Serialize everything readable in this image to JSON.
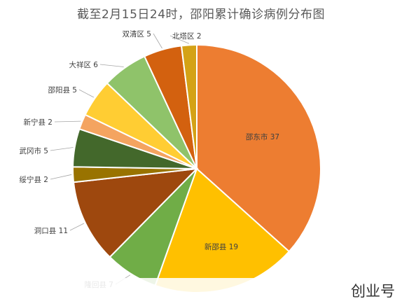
{
  "chart_data": {
    "type": "pie",
    "title": "截至2月15日24时，邵阳累计确诊病例分布图",
    "slices": [
      {
        "label": "邵东市",
        "value": 37,
        "color": "#ED7D31"
      },
      {
        "label": "新邵县",
        "value": 19,
        "color": "#FFC000"
      },
      {
        "label": "隆回县",
        "value": 7,
        "color": "#70AD47"
      },
      {
        "label": "洞口县",
        "value": 11,
        "color": "#9E480E"
      },
      {
        "label": "绥宁县",
        "value": 2,
        "color": "#997300"
      },
      {
        "label": "武冈市",
        "value": 5,
        "color": "#43682B"
      },
      {
        "label": "新宁县",
        "value": 2,
        "color": "#F4A460"
      },
      {
        "label": "邵阳县",
        "value": 5,
        "color": "#FFCD33"
      },
      {
        "label": "大祥区",
        "value": 6,
        "color": "#8FC36A"
      },
      {
        "label": "双清区",
        "value": 5,
        "color": "#D3610F"
      },
      {
        "label": "北塔区",
        "value": 2,
        "color": "#D4A216"
      }
    ],
    "legend": "none",
    "label_style": "outside-with-leader-lines"
  },
  "watermark": {
    "text": "创业号"
  }
}
